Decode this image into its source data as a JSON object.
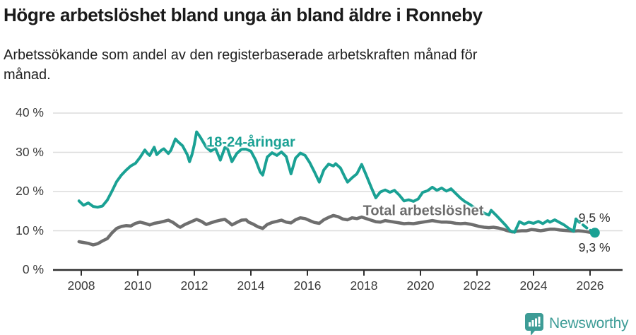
{
  "header": {
    "title": "Högre arbetslöshet bland unga än bland äldre i Ronneby",
    "subtitle_lines": [
      "Arbetssökande som andel av den registerbaserade arbetskraften månad för",
      "månad."
    ]
  },
  "chart_data": {
    "type": "line",
    "title": "Högre arbetslöshet bland unga än bland äldre i Ronneby",
    "subtitle": "Arbetssökande som andel av den registerbaserade arbetskraften månad för månad.",
    "xlabel": "",
    "ylabel": "",
    "ylim": [
      0,
      40
    ],
    "xlim": [
      2007.3,
      2027.1
    ],
    "grid": "horizontal",
    "legend_position": "inline-labels",
    "x_ticks": [
      2008,
      2010,
      2012,
      2014,
      2016,
      2018,
      2020,
      2022,
      2024,
      2026
    ],
    "x_tick_labels": [
      "2008",
      "2010",
      "2012",
      "2014",
      "2016",
      "2018",
      "2020",
      "2022",
      "2024",
      "2026"
    ],
    "y_ticks": [
      0,
      10,
      20,
      30,
      40
    ],
    "y_tick_labels": [
      "0 %",
      "10 %",
      "20 %",
      "30 %",
      "40 %"
    ],
    "colors": {
      "young": "#1aa194",
      "total": "#6e6e6e",
      "grid": "#dcdcdc",
      "axis": "#2f2f2f",
      "text": "#1a1a1a",
      "brand": "#3d9c96"
    },
    "series": [
      {
        "name": "Total arbetslöshet",
        "color": "#6e6e6e",
        "end_label": "9,3 %",
        "end_value": 9.3,
        "label_at": [
          2020.1,
          15.0
        ],
        "points": [
          [
            2007.92,
            7.2
          ],
          [
            2008.08,
            7.0
          ],
          [
            2008.25,
            6.8
          ],
          [
            2008.42,
            6.4
          ],
          [
            2008.58,
            6.7
          ],
          [
            2008.75,
            7.4
          ],
          [
            2008.92,
            8.0
          ],
          [
            2009.08,
            9.4
          ],
          [
            2009.25,
            10.6
          ],
          [
            2009.42,
            11.1
          ],
          [
            2009.58,
            11.3
          ],
          [
            2009.75,
            11.2
          ],
          [
            2009.92,
            11.9
          ],
          [
            2010.08,
            12.2
          ],
          [
            2010.25,
            11.9
          ],
          [
            2010.42,
            11.5
          ],
          [
            2010.58,
            11.9
          ],
          [
            2010.75,
            12.1
          ],
          [
            2010.92,
            12.4
          ],
          [
            2011.08,
            12.7
          ],
          [
            2011.25,
            12.1
          ],
          [
            2011.42,
            11.2
          ],
          [
            2011.5,
            10.9
          ],
          [
            2011.67,
            11.6
          ],
          [
            2011.83,
            12.1
          ],
          [
            2011.92,
            12.4
          ],
          [
            2012.08,
            12.9
          ],
          [
            2012.25,
            12.4
          ],
          [
            2012.42,
            11.6
          ],
          [
            2012.58,
            12.0
          ],
          [
            2012.75,
            12.4
          ],
          [
            2012.92,
            12.7
          ],
          [
            2013.08,
            12.9
          ],
          [
            2013.25,
            12.0
          ],
          [
            2013.33,
            11.5
          ],
          [
            2013.5,
            12.1
          ],
          [
            2013.67,
            12.7
          ],
          [
            2013.83,
            12.8
          ],
          [
            2013.92,
            12.2
          ],
          [
            2014.08,
            11.7
          ],
          [
            2014.25,
            11.0
          ],
          [
            2014.42,
            10.6
          ],
          [
            2014.58,
            11.6
          ],
          [
            2014.75,
            12.1
          ],
          [
            2014.92,
            12.4
          ],
          [
            2015.08,
            12.7
          ],
          [
            2015.25,
            12.2
          ],
          [
            2015.42,
            12.0
          ],
          [
            2015.58,
            12.8
          ],
          [
            2015.75,
            13.3
          ],
          [
            2015.92,
            13.1
          ],
          [
            2016.08,
            12.6
          ],
          [
            2016.25,
            12.1
          ],
          [
            2016.42,
            11.9
          ],
          [
            2016.58,
            12.8
          ],
          [
            2016.75,
            13.4
          ],
          [
            2016.92,
            13.9
          ],
          [
            2017.08,
            13.6
          ],
          [
            2017.25,
            13.0
          ],
          [
            2017.42,
            12.8
          ],
          [
            2017.58,
            13.3
          ],
          [
            2017.75,
            13.1
          ],
          [
            2017.92,
            13.5
          ],
          [
            2018.08,
            13.1
          ],
          [
            2018.25,
            12.7
          ],
          [
            2018.42,
            12.3
          ],
          [
            2018.58,
            12.2
          ],
          [
            2018.75,
            12.6
          ],
          [
            2018.92,
            12.4
          ],
          [
            2019.08,
            12.2
          ],
          [
            2019.25,
            12.0
          ],
          [
            2019.42,
            11.8
          ],
          [
            2019.58,
            11.9
          ],
          [
            2019.75,
            11.8
          ],
          [
            2019.92,
            12.0
          ],
          [
            2020.08,
            12.2
          ],
          [
            2020.25,
            12.4
          ],
          [
            2020.42,
            12.6
          ],
          [
            2020.58,
            12.4
          ],
          [
            2020.75,
            12.2
          ],
          [
            2020.92,
            12.2
          ],
          [
            2021.08,
            12.1
          ],
          [
            2021.25,
            11.9
          ],
          [
            2021.42,
            11.8
          ],
          [
            2021.58,
            11.9
          ],
          [
            2021.75,
            11.7
          ],
          [
            2021.92,
            11.4
          ],
          [
            2022.08,
            11.1
          ],
          [
            2022.25,
            10.9
          ],
          [
            2022.42,
            10.8
          ],
          [
            2022.58,
            10.9
          ],
          [
            2022.75,
            10.7
          ],
          [
            2022.92,
            10.4
          ],
          [
            2023.08,
            10.0
          ],
          [
            2023.25,
            9.7
          ],
          [
            2023.42,
            9.9
          ],
          [
            2023.58,
            10.0
          ],
          [
            2023.75,
            10.0
          ],
          [
            2023.92,
            10.3
          ],
          [
            2024.08,
            10.2
          ],
          [
            2024.25,
            10.0
          ],
          [
            2024.42,
            10.2
          ],
          [
            2024.58,
            10.4
          ],
          [
            2024.75,
            10.4
          ],
          [
            2024.92,
            10.2
          ],
          [
            2025.08,
            10.1
          ],
          [
            2025.25,
            10.0
          ],
          [
            2025.42,
            9.9
          ],
          [
            2025.58,
            10.0
          ],
          [
            2025.75,
            9.9
          ],
          [
            2025.92,
            9.7
          ],
          [
            2026.08,
            9.5
          ],
          [
            2026.17,
            9.3
          ]
        ]
      },
      {
        "name": "18-24-åringar",
        "color": "#1aa194",
        "end_label": "9,5 %",
        "end_value": 9.5,
        "label_at": [
          2014.0,
          32.5
        ],
        "dash_from": 2025.5,
        "end_dot": true,
        "points": [
          [
            2007.92,
            17.6
          ],
          [
            2008.08,
            16.5
          ],
          [
            2008.25,
            17.1
          ],
          [
            2008.42,
            16.2
          ],
          [
            2008.58,
            16.0
          ],
          [
            2008.75,
            16.3
          ],
          [
            2008.92,
            17.8
          ],
          [
            2009.08,
            20.0
          ],
          [
            2009.25,
            22.5
          ],
          [
            2009.42,
            24.2
          ],
          [
            2009.58,
            25.4
          ],
          [
            2009.75,
            26.5
          ],
          [
            2009.92,
            27.2
          ],
          [
            2010.08,
            28.7
          ],
          [
            2010.25,
            30.6
          ],
          [
            2010.33,
            29.8
          ],
          [
            2010.42,
            29.2
          ],
          [
            2010.58,
            31.3
          ],
          [
            2010.67,
            29.4
          ],
          [
            2010.83,
            30.5
          ],
          [
            2010.92,
            30.9
          ],
          [
            2011.08,
            29.7
          ],
          [
            2011.17,
            30.5
          ],
          [
            2011.33,
            33.4
          ],
          [
            2011.42,
            32.7
          ],
          [
            2011.58,
            31.7
          ],
          [
            2011.75,
            29.4
          ],
          [
            2011.83,
            27.6
          ],
          [
            2011.92,
            29.5
          ],
          [
            2012.0,
            32.0
          ],
          [
            2012.08,
            35.2
          ],
          [
            2012.17,
            34.3
          ],
          [
            2012.25,
            33.4
          ],
          [
            2012.42,
            31.3
          ],
          [
            2012.58,
            30.3
          ],
          [
            2012.75,
            31.0
          ],
          [
            2012.92,
            28.0
          ],
          [
            2013.08,
            31.2
          ],
          [
            2013.17,
            31.0
          ],
          [
            2013.33,
            27.6
          ],
          [
            2013.5,
            29.7
          ],
          [
            2013.67,
            30.8
          ],
          [
            2013.83,
            30.8
          ],
          [
            2014.0,
            30.3
          ],
          [
            2014.17,
            28.0
          ],
          [
            2014.33,
            25.0
          ],
          [
            2014.42,
            24.2
          ],
          [
            2014.58,
            28.8
          ],
          [
            2014.75,
            29.9
          ],
          [
            2014.92,
            29.2
          ],
          [
            2015.08,
            30.1
          ],
          [
            2015.25,
            28.9
          ],
          [
            2015.42,
            24.5
          ],
          [
            2015.58,
            28.5
          ],
          [
            2015.75,
            29.8
          ],
          [
            2015.92,
            29.2
          ],
          [
            2016.08,
            27.4
          ],
          [
            2016.25,
            25.0
          ],
          [
            2016.42,
            22.4
          ],
          [
            2016.58,
            25.5
          ],
          [
            2016.75,
            27.0
          ],
          [
            2016.92,
            26.5
          ],
          [
            2017.0,
            27.1
          ],
          [
            2017.17,
            26.0
          ],
          [
            2017.33,
            23.6
          ],
          [
            2017.42,
            22.4
          ],
          [
            2017.58,
            23.5
          ],
          [
            2017.75,
            24.5
          ],
          [
            2017.92,
            26.9
          ],
          [
            2018.08,
            24.2
          ],
          [
            2018.25,
            21.2
          ],
          [
            2018.42,
            18.4
          ],
          [
            2018.58,
            19.9
          ],
          [
            2018.75,
            20.4
          ],
          [
            2018.92,
            19.8
          ],
          [
            2019.08,
            20.3
          ],
          [
            2019.25,
            19.1
          ],
          [
            2019.42,
            17.6
          ],
          [
            2019.58,
            17.9
          ],
          [
            2019.75,
            17.5
          ],
          [
            2019.92,
            18.1
          ],
          [
            2020.08,
            19.8
          ],
          [
            2020.25,
            20.2
          ],
          [
            2020.42,
            21.1
          ],
          [
            2020.58,
            20.3
          ],
          [
            2020.75,
            20.9
          ],
          [
            2020.92,
            20.1
          ],
          [
            2021.08,
            20.7
          ],
          [
            2021.25,
            19.5
          ],
          [
            2021.42,
            18.3
          ],
          [
            2021.58,
            17.4
          ],
          [
            2021.75,
            16.7
          ],
          [
            2021.92,
            15.8
          ],
          [
            2022.08,
            15.3
          ],
          [
            2022.25,
            14.5
          ],
          [
            2022.42,
            14.0
          ],
          [
            2022.5,
            15.2
          ],
          [
            2022.67,
            14.0
          ],
          [
            2022.83,
            12.8
          ],
          [
            2023.0,
            11.5
          ],
          [
            2023.17,
            10.0
          ],
          [
            2023.33,
            9.6
          ],
          [
            2023.5,
            12.3
          ],
          [
            2023.67,
            11.7
          ],
          [
            2023.83,
            12.2
          ],
          [
            2024.0,
            11.9
          ],
          [
            2024.17,
            12.4
          ],
          [
            2024.33,
            11.8
          ],
          [
            2024.5,
            12.6
          ],
          [
            2024.58,
            12.2
          ],
          [
            2024.75,
            12.8
          ],
          [
            2024.92,
            12.1
          ],
          [
            2025.08,
            11.5
          ],
          [
            2025.25,
            10.6
          ],
          [
            2025.42,
            9.9
          ],
          [
            2025.5,
            13.0
          ],
          [
            2025.58,
            12.4
          ],
          [
            2025.75,
            11.5
          ],
          [
            2025.92,
            10.5
          ],
          [
            2026.08,
            9.8
          ],
          [
            2026.17,
            9.5
          ]
        ]
      }
    ]
  },
  "footer": {
    "brand": "Newsworthy"
  }
}
